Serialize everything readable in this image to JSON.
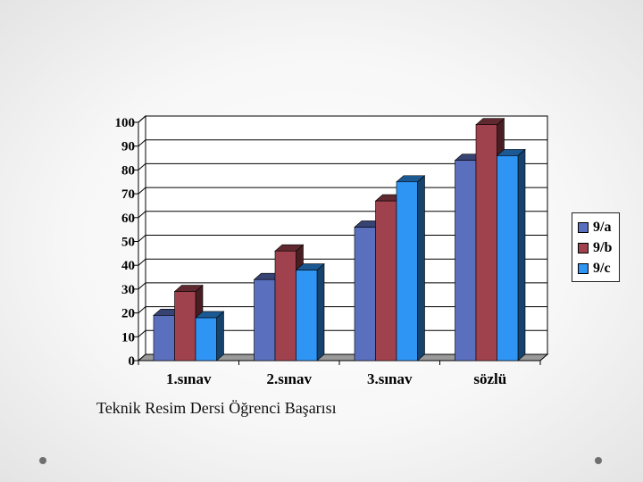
{
  "chart_data": {
    "type": "bar",
    "subtype": "3d-clustered",
    "categories": [
      "1.sınav",
      "2.sınav",
      "3.sınav",
      "sözlü"
    ],
    "series": [
      {
        "name": "9/a",
        "values": [
          19,
          34,
          56,
          84
        ],
        "color": "#5b6fbf"
      },
      {
        "name": "9/b",
        "values": [
          29,
          46,
          67,
          99
        ],
        "color": "#a0424e"
      },
      {
        "name": "9/c",
        "values": [
          18,
          38,
          75,
          86
        ],
        "color": "#2f95f5"
      }
    ],
    "ylim": [
      0,
      100
    ],
    "yticks": [
      "0",
      "10",
      "20",
      "30",
      "40",
      "50",
      "60",
      "70",
      "80",
      "90",
      "100"
    ],
    "grid": true,
    "legend_position": "right"
  },
  "caption": "Teknik Resim Dersi Öğrenci Başarısı",
  "colors": {
    "background": "#f2f2f2",
    "gridline": "#000000",
    "floor": "#999999"
  }
}
